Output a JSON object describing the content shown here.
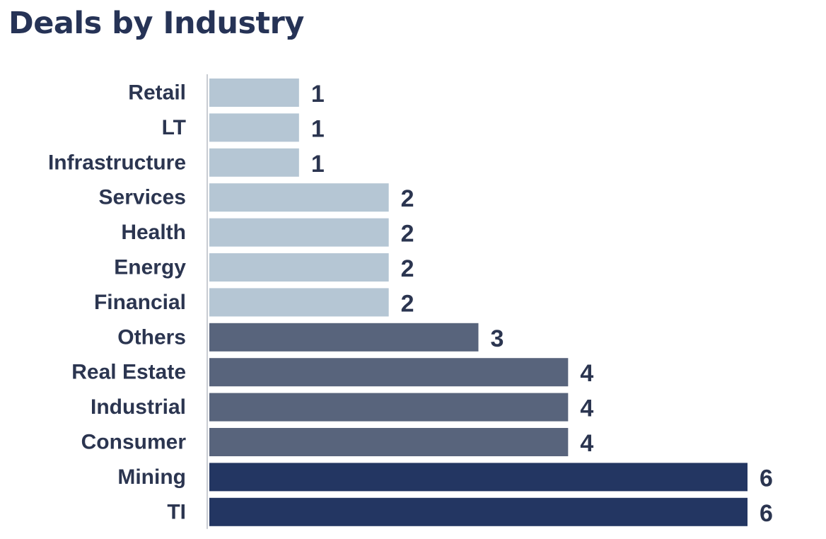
{
  "chart_data": {
    "type": "bar",
    "orientation": "horizontal",
    "title": "Deals by Industry",
    "categories": [
      "Retail",
      "LT",
      "Infrastructure",
      "Services",
      "Health",
      "Energy",
      "Financial",
      "Others",
      "Real Estate",
      "Industrial",
      "Consumer",
      "Mining",
      "TI"
    ],
    "values": [
      1,
      1,
      1,
      2,
      2,
      2,
      2,
      3,
      4,
      4,
      4,
      6,
      6
    ],
    "xlim": [
      0,
      6
    ],
    "grid": false,
    "legend": "none",
    "data_labels": true,
    "colors": {
      "low": "#b5c6d4",
      "mid": "#58647c",
      "high": "#233662",
      "axis": "#c8ccd2",
      "text": "#2b3550",
      "title": "#263356"
    }
  }
}
